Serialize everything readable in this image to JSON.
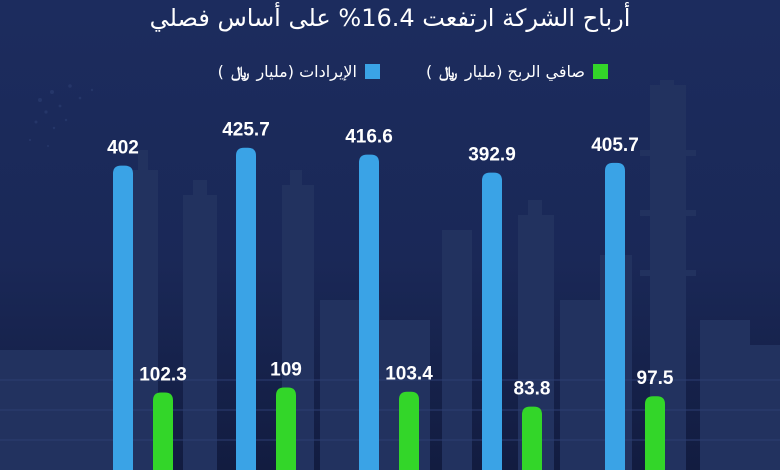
{
  "title": "أرباح الشركة ارتفعت 16.4% على أساس فصلي",
  "legend": {
    "revenue": {
      "text": "الإيرادات (مليار",
      "unit_symbol": "﷼",
      "close": ")"
    },
    "profit": {
      "text": "صافي الربح (مليار",
      "unit_symbol": "﷼",
      "close": ")"
    }
  },
  "colors": {
    "revenue": "#3aa3e6",
    "profit": "#33d629",
    "background": "#1a2a5c"
  },
  "chart_data": {
    "type": "bar",
    "categories": [
      "",
      "",
      "",
      "",
      ""
    ],
    "series": [
      {
        "name": "الإيرادات (مليار ﷼)",
        "values": [
          402,
          425.7,
          416.6,
          392.9,
          405.7
        ]
      },
      {
        "name": "صافي الربح (مليار ﷼)",
        "values": [
          102.3,
          109,
          103.4,
          83.8,
          97.5
        ]
      }
    ],
    "title": "أرباح الشركة ارتفعت 16.4% على أساس فصلي",
    "xlabel": "",
    "ylabel": "",
    "grid": false,
    "legend_position": "top-center"
  }
}
